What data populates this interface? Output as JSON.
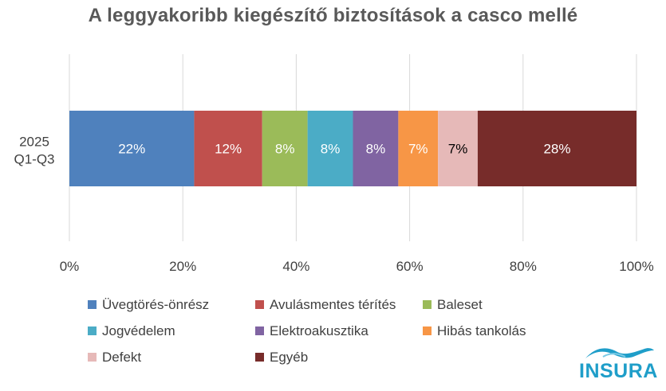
{
  "chart_data": {
    "type": "bar",
    "orientation": "horizontal",
    "stacked": true,
    "title": "A leggyakoribb kiegészítő biztosítások a casco mellé",
    "categories": [
      "2025\nQ1-Q3"
    ],
    "category_lines": [
      "2025",
      "Q1-Q3"
    ],
    "xlim": [
      0,
      100
    ],
    "x_ticks": [
      "0%",
      "20%",
      "40%",
      "60%",
      "80%",
      "100%"
    ],
    "x_tick_values": [
      0,
      20,
      40,
      60,
      80,
      100
    ],
    "grid": "vertical",
    "legend_position": "bottom",
    "series": [
      {
        "name": "Üvegtörés-önrész",
        "values": [
          22
        ],
        "label": "22%",
        "color": "#4f81bd",
        "label_color": "#ffffff"
      },
      {
        "name": "Avulásmentes térítés",
        "values": [
          12
        ],
        "label": "12%",
        "color": "#c0504d",
        "label_color": "#ffffff"
      },
      {
        "name": "Baleset",
        "values": [
          8
        ],
        "label": "8%",
        "color": "#9bbb59",
        "label_color": "#ffffff"
      },
      {
        "name": "Jogvédelem",
        "values": [
          8
        ],
        "label": "8%",
        "color": "#4bacc6",
        "label_color": "#ffffff"
      },
      {
        "name": "Elektroakusztika",
        "values": [
          8
        ],
        "label": "8%",
        "color": "#8064a2",
        "label_color": "#ffffff"
      },
      {
        "name": "Hibás tankolás",
        "values": [
          7
        ],
        "label": "7%",
        "color": "#f79646",
        "label_color": "#ffffff"
      },
      {
        "name": "Defekt",
        "values": [
          7
        ],
        "label": "7%",
        "color": "#e6b9b8",
        "label_color": "#000000"
      },
      {
        "name": "Egyéb",
        "values": [
          28
        ],
        "label": "28%",
        "color": "#772c2a",
        "label_color": "#ffffff"
      }
    ]
  },
  "logo": {
    "text": "INSURA",
    "color": "#1f9ec9"
  }
}
